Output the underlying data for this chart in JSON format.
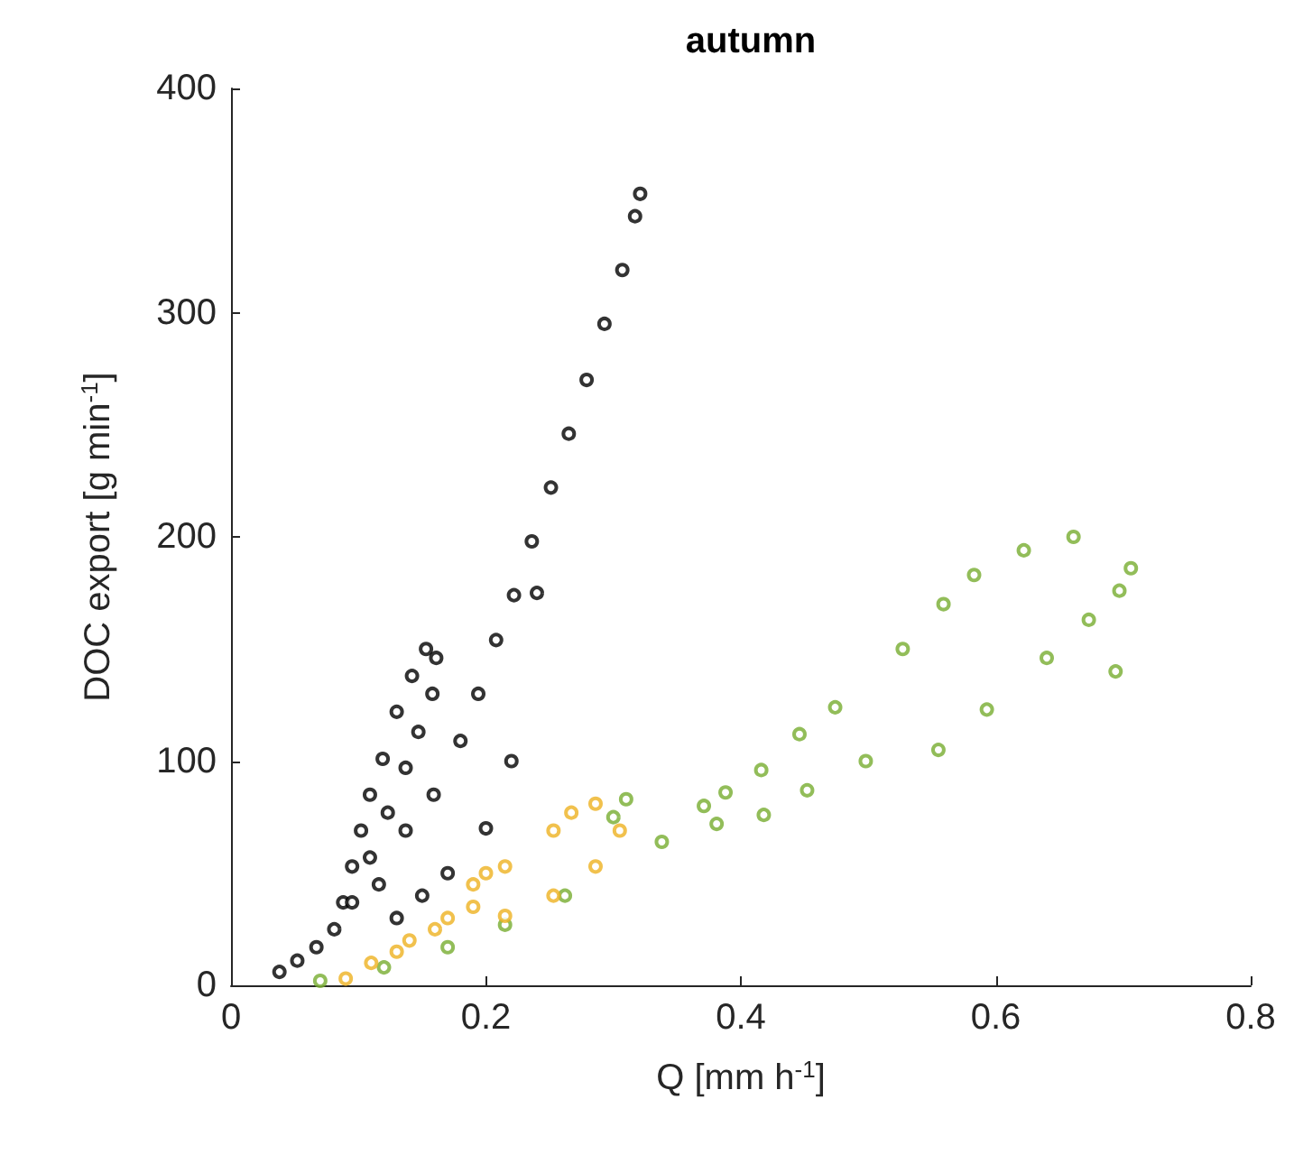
{
  "chart_data": {
    "type": "scatter",
    "title": "autumn",
    "xlabel": "Q [mm h$^{-1}$]",
    "ylabel": "DOC export [g min$^{-1}$]",
    "xlim": [
      0,
      0.8
    ],
    "xticks": [
      0,
      0.2,
      0.4,
      0.6,
      0.8
    ],
    "ylim": [
      0,
      400
    ],
    "yticks": [
      0,
      100,
      200,
      300,
      400
    ],
    "grid": false,
    "marker": "circle",
    "series": [
      {
        "color": "#000000",
        "x": [
          0.038,
          0.052,
          0.067,
          0.081,
          0.088,
          0.095,
          0.102,
          0.109,
          0.119,
          0.13,
          0.142,
          0.153,
          0.161,
          0.158,
          0.147,
          0.137,
          0.123,
          0.109,
          0.095,
          0.116,
          0.137,
          0.159,
          0.18,
          0.194,
          0.208,
          0.222,
          0.236,
          0.251,
          0.265,
          0.279,
          0.293,
          0.307,
          0.317,
          0.321,
          0.24,
          0.22,
          0.2,
          0.17,
          0.15,
          0.13
        ],
        "values": [
          6,
          11,
          17,
          25,
          37,
          53,
          69,
          85,
          101,
          122,
          138,
          150,
          146,
          130,
          113,
          97,
          77,
          57,
          37,
          45,
          69,
          85,
          109,
          130,
          154,
          174,
          198,
          222,
          246,
          270,
          295,
          319,
          343,
          353,
          175,
          100,
          70,
          50,
          40,
          30
        ]
      },
      {
        "color": "#77ac30",
        "x": [
          0.07,
          0.12,
          0.17,
          0.215,
          0.262,
          0.3,
          0.31,
          0.338,
          0.371,
          0.381,
          0.418,
          0.452,
          0.498,
          0.555,
          0.593,
          0.64,
          0.673,
          0.697,
          0.706,
          0.661,
          0.622,
          0.583,
          0.559,
          0.527,
          0.474,
          0.446,
          0.416,
          0.388,
          0.694
        ],
        "values": [
          2,
          8,
          17,
          27,
          40,
          75,
          83,
          64,
          80,
          72,
          76,
          87,
          100,
          105,
          123,
          146,
          163,
          176,
          186,
          200,
          194,
          183,
          170,
          150,
          124,
          112,
          96,
          86,
          140
        ]
      },
      {
        "color": "#edb120",
        "x": [
          0.09,
          0.11,
          0.13,
          0.14,
          0.16,
          0.17,
          0.19,
          0.19,
          0.2,
          0.215,
          0.253,
          0.286,
          0.305,
          0.286,
          0.267,
          0.253,
          0.215
        ],
        "values": [
          3,
          10,
          15,
          20,
          25,
          30,
          35,
          45,
          50,
          31,
          40,
          53,
          69,
          81,
          77,
          69,
          53
        ]
      }
    ]
  }
}
